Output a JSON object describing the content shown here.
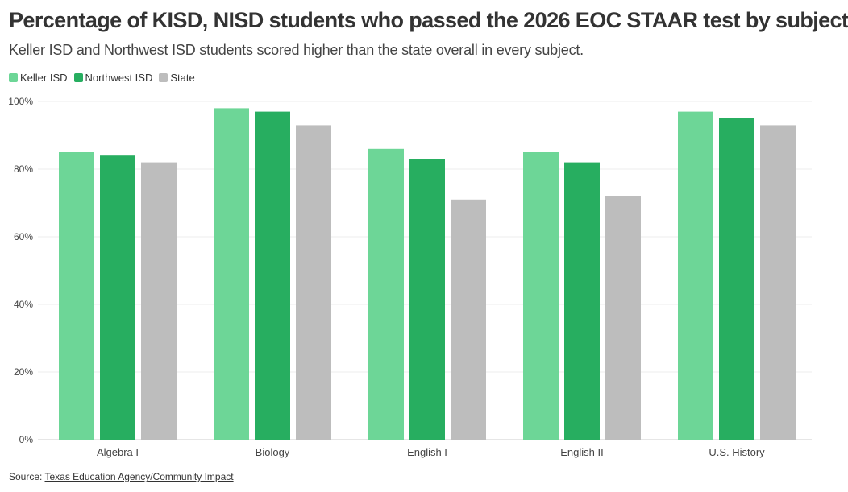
{
  "chart_data": {
    "type": "bar",
    "title": "Percentage of KISD, NISD students who passed the 2026 EOC STAAR test by subject",
    "subtitle": "Keller ISD and Northwest ISD students scored higher than the state overall in every subject.",
    "categories": [
      "Algebra I",
      "Biology",
      "English I",
      "English II",
      "U.S. History"
    ],
    "series": [
      {
        "name": "Keller ISD",
        "color": "#6dd697",
        "values": [
          85,
          98,
          86,
          85,
          97
        ]
      },
      {
        "name": "Northwest ISD",
        "color": "#27ae60",
        "values": [
          84,
          97,
          83,
          82,
          95
        ]
      },
      {
        "name": "State",
        "color": "#bdbdbd",
        "values": [
          82,
          93,
          71,
          72,
          93
        ]
      }
    ],
    "ylim": [
      0,
      100
    ],
    "yticks": [
      "0%",
      "20%",
      "40%",
      "60%",
      "80%",
      "100%"
    ],
    "ytick_values": [
      0,
      20,
      40,
      60,
      80,
      100
    ],
    "grid": true,
    "legend_position": "top-left"
  },
  "footer": {
    "source_label": "Source: ",
    "source_link": "Texas Education Agency/Community Impact"
  }
}
